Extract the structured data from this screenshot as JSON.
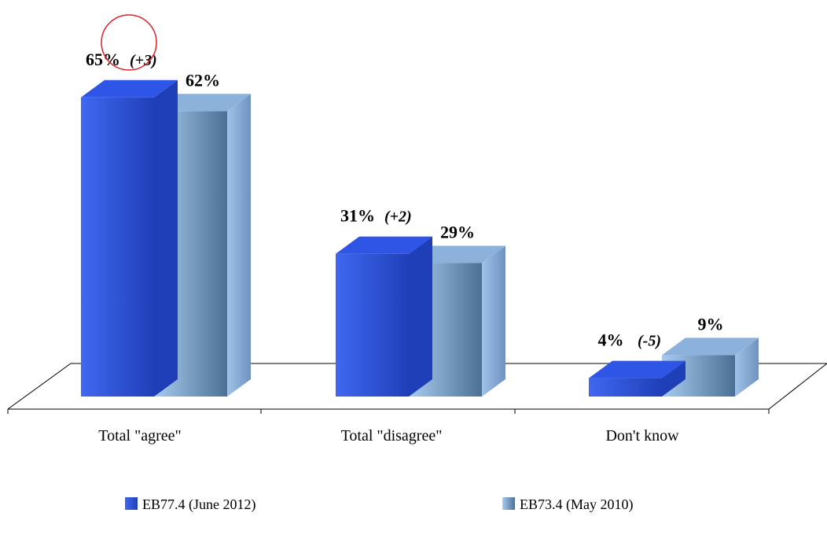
{
  "chart_data": {
    "type": "bar",
    "categories": [
      "Total \"agree\"",
      "Total \"disagree\"",
      "Don't know"
    ],
    "series": [
      {
        "name": "EB77.4  (June 2012)",
        "values": [
          65,
          31,
          4
        ],
        "value_labels": [
          "65%",
          "31%",
          "4%"
        ],
        "changes": [
          "(+3)",
          "(+2)",
          "(-5)"
        ]
      },
      {
        "name": "EB73.4  (May 2010)",
        "values": [
          62,
          29,
          9
        ],
        "value_labels": [
          "62%",
          "29%",
          "9%"
        ]
      }
    ],
    "ylim": [
      0,
      65
    ],
    "legend": "bottom",
    "grid": false,
    "highlight": {
      "series": 0,
      "category": 0,
      "shape": "circle",
      "color": "#dd1f26"
    }
  },
  "colors": {
    "series0": {
      "light": "#3f68f0",
      "dark": "#1f3fb8",
      "top": "#2e55e6"
    },
    "series1": {
      "light": "#a9cbf0",
      "dark": "#4b6f94",
      "top": "#8cb2dc"
    },
    "floor": "#000000"
  }
}
